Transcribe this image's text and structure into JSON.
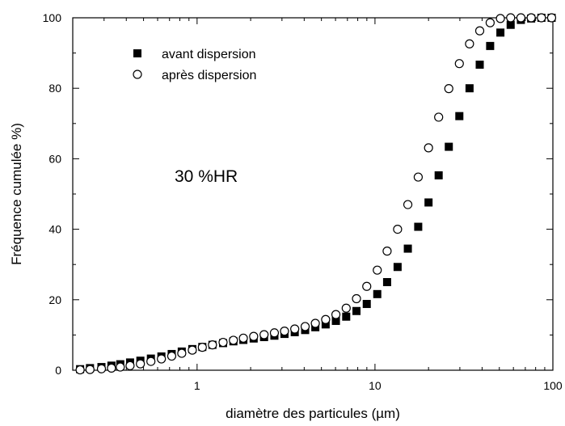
{
  "chart_data": {
    "type": "scatter",
    "xscale": "log",
    "xlim": [
      0.2,
      100
    ],
    "ylim": [
      0,
      100
    ],
    "xlabel": "diamètre des particules (µm)",
    "ylabel": "Fréquence cumulée %)",
    "x_ticks": [
      1,
      10,
      100
    ],
    "x_tick_labels": [
      "1",
      "10",
      "100"
    ],
    "y_ticks": [
      0,
      20,
      40,
      60,
      80,
      100
    ],
    "y_tick_labels": [
      "0",
      "20",
      "40",
      "60",
      "80",
      "100"
    ],
    "grid": false,
    "legend_position": "top-left",
    "annotation": "30 %HR",
    "series": [
      {
        "name": "avant dispersion",
        "marker": "filled-square",
        "color": "#000000",
        "x": [
          0.22,
          0.25,
          0.29,
          0.33,
          0.37,
          0.42,
          0.48,
          0.55,
          0.63,
          0.72,
          0.82,
          0.94,
          1.07,
          1.22,
          1.4,
          1.6,
          1.82,
          2.08,
          2.38,
          2.72,
          3.1,
          3.54,
          4.05,
          4.62,
          5.28,
          6.03,
          6.89,
          7.87,
          8.99,
          10.3,
          11.7,
          13.4,
          15.3,
          17.5,
          20.0,
          22.8,
          26.0,
          29.8,
          34.0,
          38.8,
          44.4,
          50.7,
          57.9,
          66.1,
          75.5,
          86.2,
          98.4
        ],
        "y": [
          0.3,
          0.6,
          0.9,
          1.3,
          1.7,
          2.2,
          2.7,
          3.3,
          3.9,
          4.6,
          5.3,
          6.0,
          6.6,
          7.2,
          7.7,
          8.2,
          8.6,
          9.0,
          9.4,
          9.8,
          10.3,
          10.8,
          11.4,
          12.2,
          13.0,
          14.0,
          15.2,
          16.8,
          18.8,
          21.6,
          25.0,
          29.3,
          34.5,
          40.7,
          47.6,
          55.3,
          63.4,
          72.1,
          80.0,
          86.7,
          92.0,
          95.8,
          98.0,
          99.4,
          99.8,
          100.0,
          100.0
        ]
      },
      {
        "name": "après dispersion",
        "marker": "open-circle",
        "color": "#000000",
        "x": [
          0.22,
          0.25,
          0.29,
          0.33,
          0.37,
          0.42,
          0.48,
          0.55,
          0.63,
          0.72,
          0.82,
          0.94,
          1.07,
          1.22,
          1.4,
          1.6,
          1.82,
          2.08,
          2.38,
          2.72,
          3.1,
          3.54,
          4.05,
          4.62,
          5.28,
          6.03,
          6.89,
          7.87,
          8.99,
          10.3,
          11.7,
          13.4,
          15.3,
          17.5,
          20.0,
          22.8,
          26.0,
          29.8,
          34.0,
          38.8,
          44.4,
          50.7,
          57.9,
          66.1,
          75.5,
          86.2,
          98.4
        ],
        "y": [
          0.1,
          0.2,
          0.4,
          0.6,
          0.9,
          1.3,
          1.8,
          2.5,
          3.2,
          4.0,
          4.8,
          5.7,
          6.5,
          7.2,
          7.9,
          8.5,
          9.1,
          9.6,
          10.1,
          10.6,
          11.1,
          11.7,
          12.4,
          13.3,
          14.4,
          15.8,
          17.6,
          20.3,
          23.8,
          28.4,
          33.8,
          40.0,
          47.0,
          54.8,
          63.1,
          71.8,
          79.9,
          87.0,
          92.6,
          96.3,
          98.6,
          99.8,
          100.0,
          100.0,
          100.0,
          100.0,
          100.0
        ]
      }
    ]
  }
}
